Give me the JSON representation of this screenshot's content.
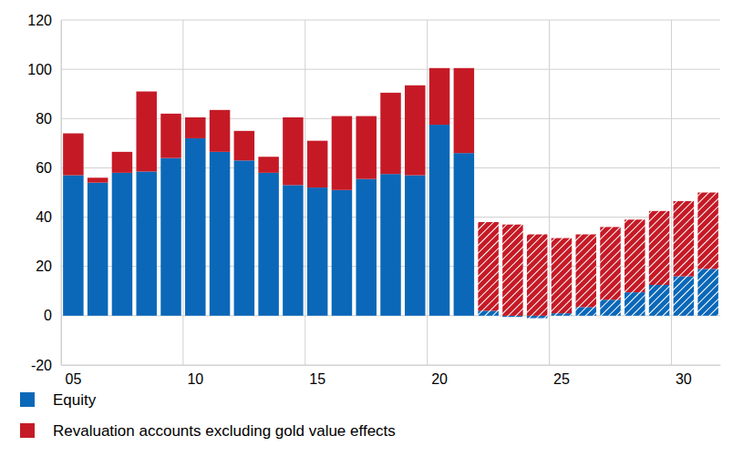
{
  "chart_data": {
    "type": "bar",
    "stacked": true,
    "grid": true,
    "legend": "bottom",
    "categories": [
      "05",
      null,
      null,
      null,
      null,
      "10",
      null,
      null,
      null,
      null,
      "15",
      null,
      null,
      null,
      null,
      "20",
      null,
      null,
      null,
      null,
      "25",
      null,
      null,
      null,
      null,
      "30",
      null
    ],
    "series": [
      {
        "name": "Equity",
        "color": "#0b68b8",
        "values": [
          57,
          54,
          58,
          58.5,
          64,
          72,
          66.5,
          63,
          58,
          53,
          52,
          51,
          55.5,
          57.5,
          57,
          77.5,
          66,
          null,
          null,
          null,
          null,
          null,
          null,
          null,
          null,
          null,
          null
        ]
      },
      {
        "name": "Revaluation accounts excluding gold value effects",
        "color": "#c51a26",
        "values": [
          17,
          2,
          8.5,
          32.5,
          18,
          8.5,
          17,
          12,
          6.5,
          27.5,
          19,
          30,
          25.5,
          33,
          36.5,
          23,
          34.5,
          null,
          null,
          null,
          null,
          null,
          null,
          null,
          null,
          null,
          null
        ]
      },
      {
        "color": "#0b68b8",
        "line_style": "hatched",
        "values": [
          null,
          null,
          null,
          null,
          null,
          null,
          null,
          null,
          null,
          null,
          null,
          null,
          null,
          null,
          null,
          null,
          null,
          2,
          -0.5,
          -1,
          1,
          3.5,
          6.5,
          9.5,
          12.5,
          16,
          19
        ]
      },
      {
        "color": "#c51a26",
        "line_style": "hatched",
        "values": [
          null,
          null,
          null,
          null,
          null,
          null,
          null,
          null,
          null,
          null,
          null,
          null,
          null,
          null,
          null,
          null,
          null,
          36,
          37,
          33,
          30.5,
          29.5,
          29.5,
          29.5,
          30,
          30.5,
          31
        ]
      }
    ],
    "ylim": [
      -20,
      120
    ],
    "yticks": [
      -20,
      0,
      20,
      40,
      60,
      80,
      100,
      120
    ]
  }
}
